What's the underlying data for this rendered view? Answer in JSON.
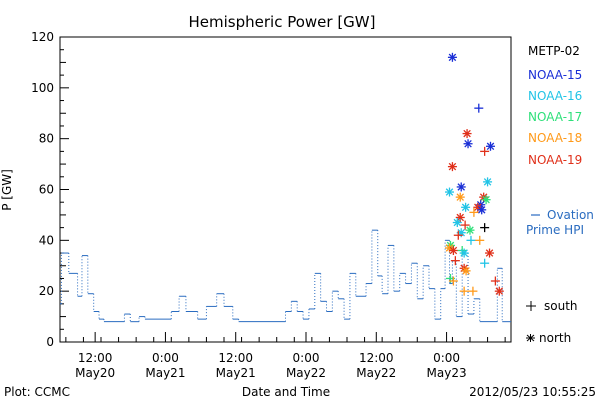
{
  "chart_data": {
    "type": "scatter",
    "title": "Hemispheric Power [GW]",
    "ylabel": "P [GW]",
    "xlabel": "Date and Time",
    "ylim": [
      0,
      120
    ],
    "yticks": [
      0,
      20,
      40,
      60,
      80,
      100,
      120
    ],
    "xlim": [
      "2012-05-20 06:00",
      "2012-05-23 11:00"
    ],
    "xticks": [
      {
        "t": "2012-05-20 12:00",
        "time": "12:00",
        "date": "May20"
      },
      {
        "t": "2012-05-21 00:00",
        "time": "0:00",
        "date": "May21"
      },
      {
        "t": "2012-05-21 12:00",
        "time": "12:00",
        "date": "May21"
      },
      {
        "t": "2012-05-22 00:00",
        "time": "0:00",
        "date": "May22"
      },
      {
        "t": "2012-05-22 12:00",
        "time": "12:00",
        "date": "May22"
      },
      {
        "t": "2012-05-23 00:00",
        "time": "0:00",
        "date": "May23"
      }
    ],
    "footer_left": "Plot: CCMC",
    "footer_right": "2012/05/23 10:55:25",
    "legend": {
      "placement": "right",
      "satellites": [
        {
          "name": "METP-02",
          "color": "#000000"
        },
        {
          "name": "NOAA-15",
          "color": "#1a2fd6"
        },
        {
          "name": "NOAA-16",
          "color": "#22c4e6"
        },
        {
          "name": "NOAA-17",
          "color": "#2ee07a"
        },
        {
          "name": "NOAA-18",
          "color": "#ff9a1a"
        },
        {
          "name": "NOAA-19",
          "color": "#e0301a"
        }
      ],
      "ovation_label_line1": "Ovation",
      "ovation_label_line2": "Prime HPI",
      "ovation_color": "#2a6cc0",
      "south_label": "south",
      "north_label": "north"
    },
    "ovation_series": [
      [
        "2012-05-20 06:00",
        15
      ],
      [
        "2012-05-20 06:15",
        35
      ],
      [
        "2012-05-20 07:30",
        27
      ],
      [
        "2012-05-20 09:00",
        18
      ],
      [
        "2012-05-20 09:45",
        34
      ],
      [
        "2012-05-20 10:45",
        19
      ],
      [
        "2012-05-20 11:45",
        12
      ],
      [
        "2012-05-20 12:40",
        9
      ],
      [
        "2012-05-20 13:30",
        8
      ],
      [
        "2012-05-20 17:00",
        11
      ],
      [
        "2012-05-20 18:00",
        8
      ],
      [
        "2012-05-20 19:30",
        10
      ],
      [
        "2012-05-20 20:30",
        9
      ],
      [
        "2012-05-21 01:00",
        12
      ],
      [
        "2012-05-21 02:20",
        18
      ],
      [
        "2012-05-21 03:30",
        12
      ],
      [
        "2012-05-21 05:30",
        9
      ],
      [
        "2012-05-21 07:00",
        14
      ],
      [
        "2012-05-21 08:45",
        19
      ],
      [
        "2012-05-21 10:00",
        14
      ],
      [
        "2012-05-21 11:30",
        9
      ],
      [
        "2012-05-21 12:30",
        8
      ],
      [
        "2012-05-21 20:30",
        12
      ],
      [
        "2012-05-21 21:30",
        16
      ],
      [
        "2012-05-21 22:30",
        12
      ],
      [
        "2012-05-21 23:30",
        9
      ],
      [
        "2012-05-22 00:30",
        13
      ],
      [
        "2012-05-22 01:30",
        27
      ],
      [
        "2012-05-22 02:30",
        16
      ],
      [
        "2012-05-22 03:30",
        12
      ],
      [
        "2012-05-22 04:30",
        20
      ],
      [
        "2012-05-22 05:30",
        17
      ],
      [
        "2012-05-22 06:30",
        9
      ],
      [
        "2012-05-22 07:30",
        27
      ],
      [
        "2012-05-22 08:30",
        18
      ],
      [
        "2012-05-22 10:15",
        23
      ],
      [
        "2012-05-22 11:15",
        44
      ],
      [
        "2012-05-22 12:15",
        26
      ],
      [
        "2012-05-22 13:00",
        19
      ],
      [
        "2012-05-22 14:00",
        38
      ],
      [
        "2012-05-22 15:00",
        20
      ],
      [
        "2012-05-22 16:00",
        27
      ],
      [
        "2012-05-22 17:00",
        23
      ],
      [
        "2012-05-22 18:00",
        31
      ],
      [
        "2012-05-22 19:00",
        17
      ],
      [
        "2012-05-22 20:00",
        30
      ],
      [
        "2012-05-22 21:00",
        21
      ],
      [
        "2012-05-22 22:00",
        9
      ],
      [
        "2012-05-22 23:00",
        21
      ],
      [
        "2012-05-22 23:45",
        40
      ],
      [
        "2012-05-23 00:30",
        23
      ],
      [
        "2012-05-23 01:00",
        32
      ],
      [
        "2012-05-23 01:40",
        10
      ],
      [
        "2012-05-23 02:40",
        35
      ],
      [
        "2012-05-23 03:40",
        11
      ],
      [
        "2012-05-23 04:40",
        17
      ],
      [
        "2012-05-23 05:40",
        8
      ],
      [
        "2012-05-23 08:40",
        29
      ],
      [
        "2012-05-23 09:30",
        8
      ]
    ],
    "points": [
      {
        "sat": "NOAA-15",
        "hemi": "north",
        "t": "2012-05-23 01:00",
        "v": 112
      },
      {
        "sat": "NOAA-15",
        "hemi": "south",
        "t": "2012-05-23 05:30",
        "v": 92
      },
      {
        "sat": "NOAA-19",
        "hemi": "north",
        "t": "2012-05-23 03:30",
        "v": 82
      },
      {
        "sat": "NOAA-15",
        "hemi": "north",
        "t": "2012-05-23 03:40",
        "v": 78
      },
      {
        "sat": "NOAA-15",
        "hemi": "north",
        "t": "2012-05-23 07:30",
        "v": 77
      },
      {
        "sat": "NOAA-19",
        "hemi": "south",
        "t": "2012-05-23 06:30",
        "v": 75
      },
      {
        "sat": "NOAA-19",
        "hemi": "north",
        "t": "2012-05-23 01:00",
        "v": 69
      },
      {
        "sat": "NOAA-16",
        "hemi": "north",
        "t": "2012-05-23 07:00",
        "v": 63
      },
      {
        "sat": "NOAA-15",
        "hemi": "north",
        "t": "2012-05-23 02:30",
        "v": 61
      },
      {
        "sat": "NOAA-16",
        "hemi": "north",
        "t": "2012-05-23 00:30",
        "v": 59
      },
      {
        "sat": "NOAA-18",
        "hemi": "north",
        "t": "2012-05-23 02:20",
        "v": 57
      },
      {
        "sat": "NOAA-19",
        "hemi": "north",
        "t": "2012-05-23 06:20",
        "v": 57
      },
      {
        "sat": "NOAA-17",
        "hemi": "north",
        "t": "2012-05-23 06:45",
        "v": 56
      },
      {
        "sat": "NOAA-15",
        "hemi": "north",
        "t": "2012-05-23 05:50",
        "v": 54
      },
      {
        "sat": "NOAA-16",
        "hemi": "north",
        "t": "2012-05-23 03:15",
        "v": 53
      },
      {
        "sat": "NOAA-19",
        "hemi": "north",
        "t": "2012-05-23 05:20",
        "v": 53
      },
      {
        "sat": "NOAA-15",
        "hemi": "north",
        "t": "2012-05-23 06:00",
        "v": 52
      },
      {
        "sat": "NOAA-18",
        "hemi": "south",
        "t": "2012-05-23 04:40",
        "v": 51
      },
      {
        "sat": "NOAA-19",
        "hemi": "north",
        "t": "2012-05-23 02:20",
        "v": 49
      },
      {
        "sat": "NOAA-16",
        "hemi": "north",
        "t": "2012-05-23 01:50",
        "v": 47
      },
      {
        "sat": "NOAA-19",
        "hemi": "south",
        "t": "2012-05-23 03:10",
        "v": 46
      },
      {
        "sat": "METP-02",
        "hemi": "south",
        "t": "2012-05-23 06:30",
        "v": 45
      },
      {
        "sat": "NOAA-17",
        "hemi": "north",
        "t": "2012-05-23 04:00",
        "v": 44
      },
      {
        "sat": "NOAA-16",
        "hemi": "north",
        "t": "2012-05-23 02:30",
        "v": 43
      },
      {
        "sat": "NOAA-19",
        "hemi": "south",
        "t": "2012-05-23 02:00",
        "v": 42
      },
      {
        "sat": "NOAA-16",
        "hemi": "south",
        "t": "2012-05-23 04:10",
        "v": 40
      },
      {
        "sat": "NOAA-18",
        "hemi": "south",
        "t": "2012-05-23 05:40",
        "v": 40
      },
      {
        "sat": "NOAA-17",
        "hemi": "north",
        "t": "2012-05-23 00:40",
        "v": 38
      },
      {
        "sat": "NOAA-18",
        "hemi": "north",
        "t": "2012-05-23 00:30",
        "v": 37
      },
      {
        "sat": "NOAA-19",
        "hemi": "north",
        "t": "2012-05-23 01:10",
        "v": 36
      },
      {
        "sat": "NOAA-17",
        "hemi": "south",
        "t": "2012-05-23 02:40",
        "v": 36
      },
      {
        "sat": "NOAA-16",
        "hemi": "north",
        "t": "2012-05-23 03:00",
        "v": 35
      },
      {
        "sat": "NOAA-19",
        "hemi": "north",
        "t": "2012-05-23 07:20",
        "v": 35
      },
      {
        "sat": "NOAA-19",
        "hemi": "south",
        "t": "2012-05-23 01:30",
        "v": 32
      },
      {
        "sat": "NOAA-16",
        "hemi": "south",
        "t": "2012-05-23 06:30",
        "v": 31
      },
      {
        "sat": "NOAA-19",
        "hemi": "north",
        "t": "2012-05-23 03:00",
        "v": 29
      },
      {
        "sat": "NOAA-18",
        "hemi": "north",
        "t": "2012-05-23 03:20",
        "v": 28
      },
      {
        "sat": "NOAA-17",
        "hemi": "south",
        "t": "2012-05-23 00:40",
        "v": 25
      },
      {
        "sat": "NOAA-19",
        "hemi": "south",
        "t": "2012-05-23 08:20",
        "v": 24
      },
      {
        "sat": "NOAA-18",
        "hemi": "south",
        "t": "2012-05-23 01:10",
        "v": 24
      },
      {
        "sat": "NOAA-19",
        "hemi": "north",
        "t": "2012-05-23 09:00",
        "v": 20
      },
      {
        "sat": "NOAA-18",
        "hemi": "south",
        "t": "2012-05-23 03:00",
        "v": 20
      },
      {
        "sat": "NOAA-18",
        "hemi": "south",
        "t": "2012-05-23 04:30",
        "v": 20
      }
    ]
  }
}
